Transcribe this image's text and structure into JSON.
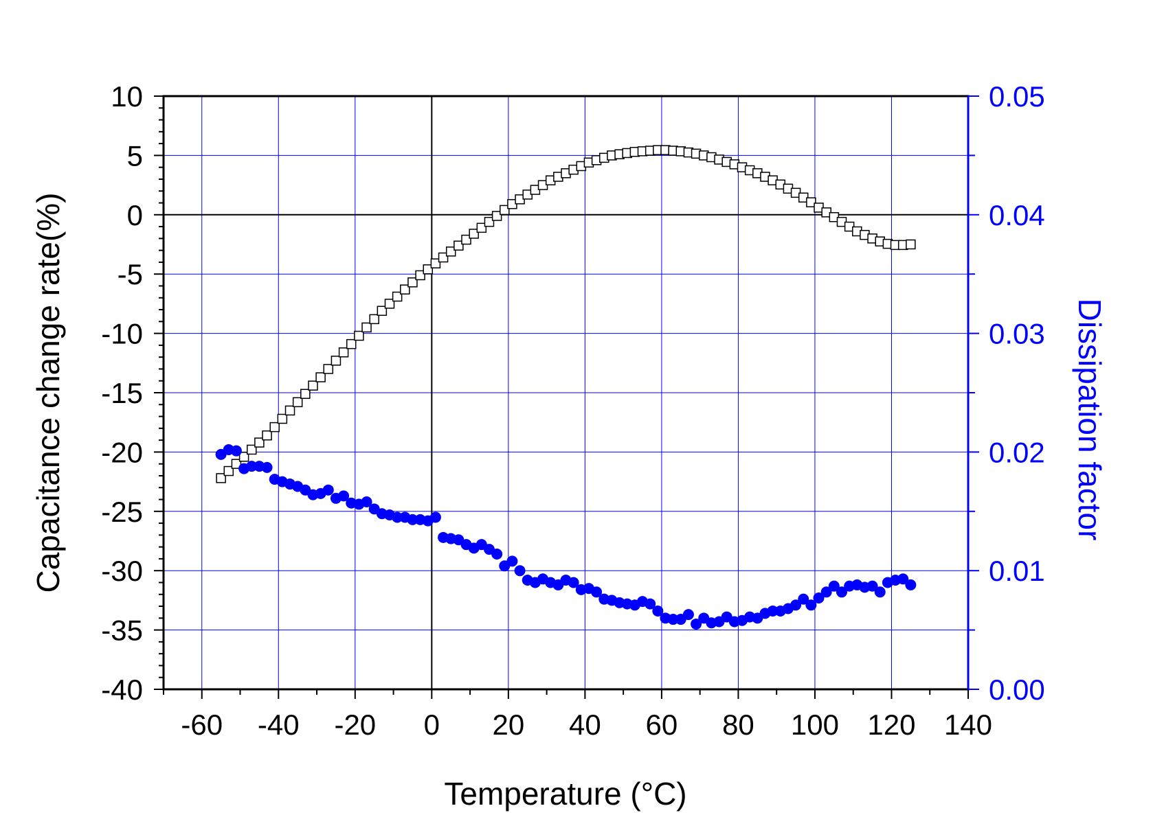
{
  "colors": {
    "left_axis": "#000000",
    "right_axis": "#0000ff",
    "grid": "#0000ff",
    "background": "#ffffff"
  },
  "chart_data": {
    "type": "scatter",
    "xlabel": "Temperature (°C)",
    "ylabel": "Capacitance change rate(%)",
    "y2label": "Dissipation factor",
    "xlim": [
      -70,
      140
    ],
    "ylim": [
      -40,
      10
    ],
    "y2lim": [
      0.0,
      0.05
    ],
    "x_ticks": [
      "-60",
      "-40",
      "-20",
      "0",
      "20",
      "40",
      "60",
      "80",
      "100",
      "120",
      "140"
    ],
    "y_ticks": [
      "-40",
      "-35",
      "-30",
      "-25",
      "-20",
      "-15",
      "-10",
      "-5",
      "0",
      "5",
      "10"
    ],
    "y2_ticks": [
      "0.00",
      "0.01",
      "0.02",
      "0.03",
      "0.04",
      "0.05"
    ],
    "grid": true,
    "zero_lines": true,
    "series": [
      {
        "axis": "left",
        "marker": "open-square",
        "color": "#000000",
        "x": [
          -55,
          -53,
          -51,
          -49,
          -47,
          -45,
          -43,
          -41,
          -39,
          -37,
          -35,
          -33,
          -31,
          -29,
          -27,
          -25,
          -23,
          -21,
          -19,
          -17,
          -15,
          -13,
          -11,
          -9,
          -7,
          -5,
          -3,
          -1,
          1,
          3,
          5,
          7,
          9,
          11,
          13,
          15,
          17,
          19,
          21,
          23,
          25,
          27,
          29,
          31,
          33,
          35,
          37,
          39,
          41,
          43,
          45,
          47,
          49,
          51,
          53,
          55,
          57,
          59,
          61,
          63,
          65,
          67,
          69,
          71,
          73,
          75,
          77,
          79,
          81,
          83,
          85,
          87,
          89,
          91,
          93,
          95,
          97,
          99,
          101,
          103,
          105,
          107,
          109,
          111,
          113,
          115,
          117,
          119,
          121,
          123,
          125
        ],
        "y": [
          -22.2,
          -21.6,
          -21.0,
          -20.4,
          -19.8,
          -19.2,
          -18.6,
          -17.9,
          -17.2,
          -16.5,
          -15.8,
          -15.1,
          -14.4,
          -13.7,
          -13.0,
          -12.3,
          -11.6,
          -10.9,
          -10.2,
          -9.5,
          -8.8,
          -8.1,
          -7.5,
          -6.9,
          -6.3,
          -5.7,
          -5.1,
          -4.6,
          -4.1,
          -3.6,
          -3.1,
          -2.6,
          -2.1,
          -1.6,
          -1.1,
          -0.6,
          -0.1,
          0.4,
          0.9,
          1.3,
          1.7,
          2.1,
          2.5,
          2.9,
          3.2,
          3.5,
          3.8,
          4.1,
          4.4,
          4.6,
          4.8,
          5.0,
          5.1,
          5.2,
          5.3,
          5.35,
          5.4,
          5.45,
          5.45,
          5.4,
          5.35,
          5.25,
          5.15,
          5.0,
          4.85,
          4.65,
          4.45,
          4.25,
          4.0,
          3.75,
          3.5,
          3.2,
          2.9,
          2.55,
          2.2,
          1.85,
          1.45,
          1.05,
          0.6,
          0.2,
          -0.2,
          -0.6,
          -1.0,
          -1.4,
          -1.7,
          -2.0,
          -2.25,
          -2.45,
          -2.55,
          -2.55,
          -2.5
        ],
        "name": ""
      },
      {
        "axis": "right",
        "marker": "filled-circle",
        "color": "#0000ff",
        "x": [
          -55,
          -53,
          -51,
          -49,
          -47,
          -45,
          -43,
          -41,
          -39,
          -37,
          -35,
          -33,
          -31,
          -29,
          -27,
          -25,
          -23,
          -21,
          -19,
          -17,
          -15,
          -13,
          -11,
          -9,
          -7,
          -5,
          -3,
          -1,
          1,
          3,
          5,
          7,
          9,
          11,
          13,
          15,
          17,
          19,
          21,
          23,
          25,
          27,
          29,
          31,
          33,
          35,
          37,
          39,
          41,
          43,
          45,
          47,
          49,
          51,
          53,
          55,
          57,
          59,
          61,
          63,
          65,
          67,
          69,
          71,
          73,
          75,
          77,
          79,
          81,
          83,
          85,
          87,
          89,
          91,
          93,
          95,
          97,
          99,
          101,
          103,
          105,
          107,
          109,
          111,
          113,
          115,
          117,
          119,
          121,
          123,
          125
        ],
        "y": [
          0.0198,
          0.0202,
          0.0201,
          0.0186,
          0.0188,
          0.0188,
          0.0187,
          0.0177,
          0.0175,
          0.0173,
          0.0171,
          0.0168,
          0.0164,
          0.0165,
          0.0168,
          0.0161,
          0.0163,
          0.0157,
          0.0156,
          0.0158,
          0.0152,
          0.0148,
          0.0147,
          0.0145,
          0.0145,
          0.0143,
          0.0143,
          0.0142,
          0.0145,
          0.0128,
          0.0127,
          0.0126,
          0.0122,
          0.0119,
          0.0122,
          0.0118,
          0.0114,
          0.0104,
          0.0108,
          0.01,
          0.0092,
          0.009,
          0.0093,
          0.009,
          0.0088,
          0.0092,
          0.009,
          0.0084,
          0.0085,
          0.0082,
          0.0076,
          0.0075,
          0.0073,
          0.0072,
          0.0071,
          0.0074,
          0.0072,
          0.0066,
          0.006,
          0.0059,
          0.0059,
          0.0063,
          0.0055,
          0.006,
          0.0056,
          0.0057,
          0.0061,
          0.0057,
          0.0058,
          0.0061,
          0.006,
          0.0064,
          0.0066,
          0.0066,
          0.0068,
          0.0071,
          0.0076,
          0.0071,
          0.0077,
          0.0082,
          0.0087,
          0.0082,
          0.0087,
          0.0088,
          0.0086,
          0.0087,
          0.0082,
          0.009,
          0.0092,
          0.0093,
          0.0088
        ],
        "name": ""
      }
    ]
  }
}
